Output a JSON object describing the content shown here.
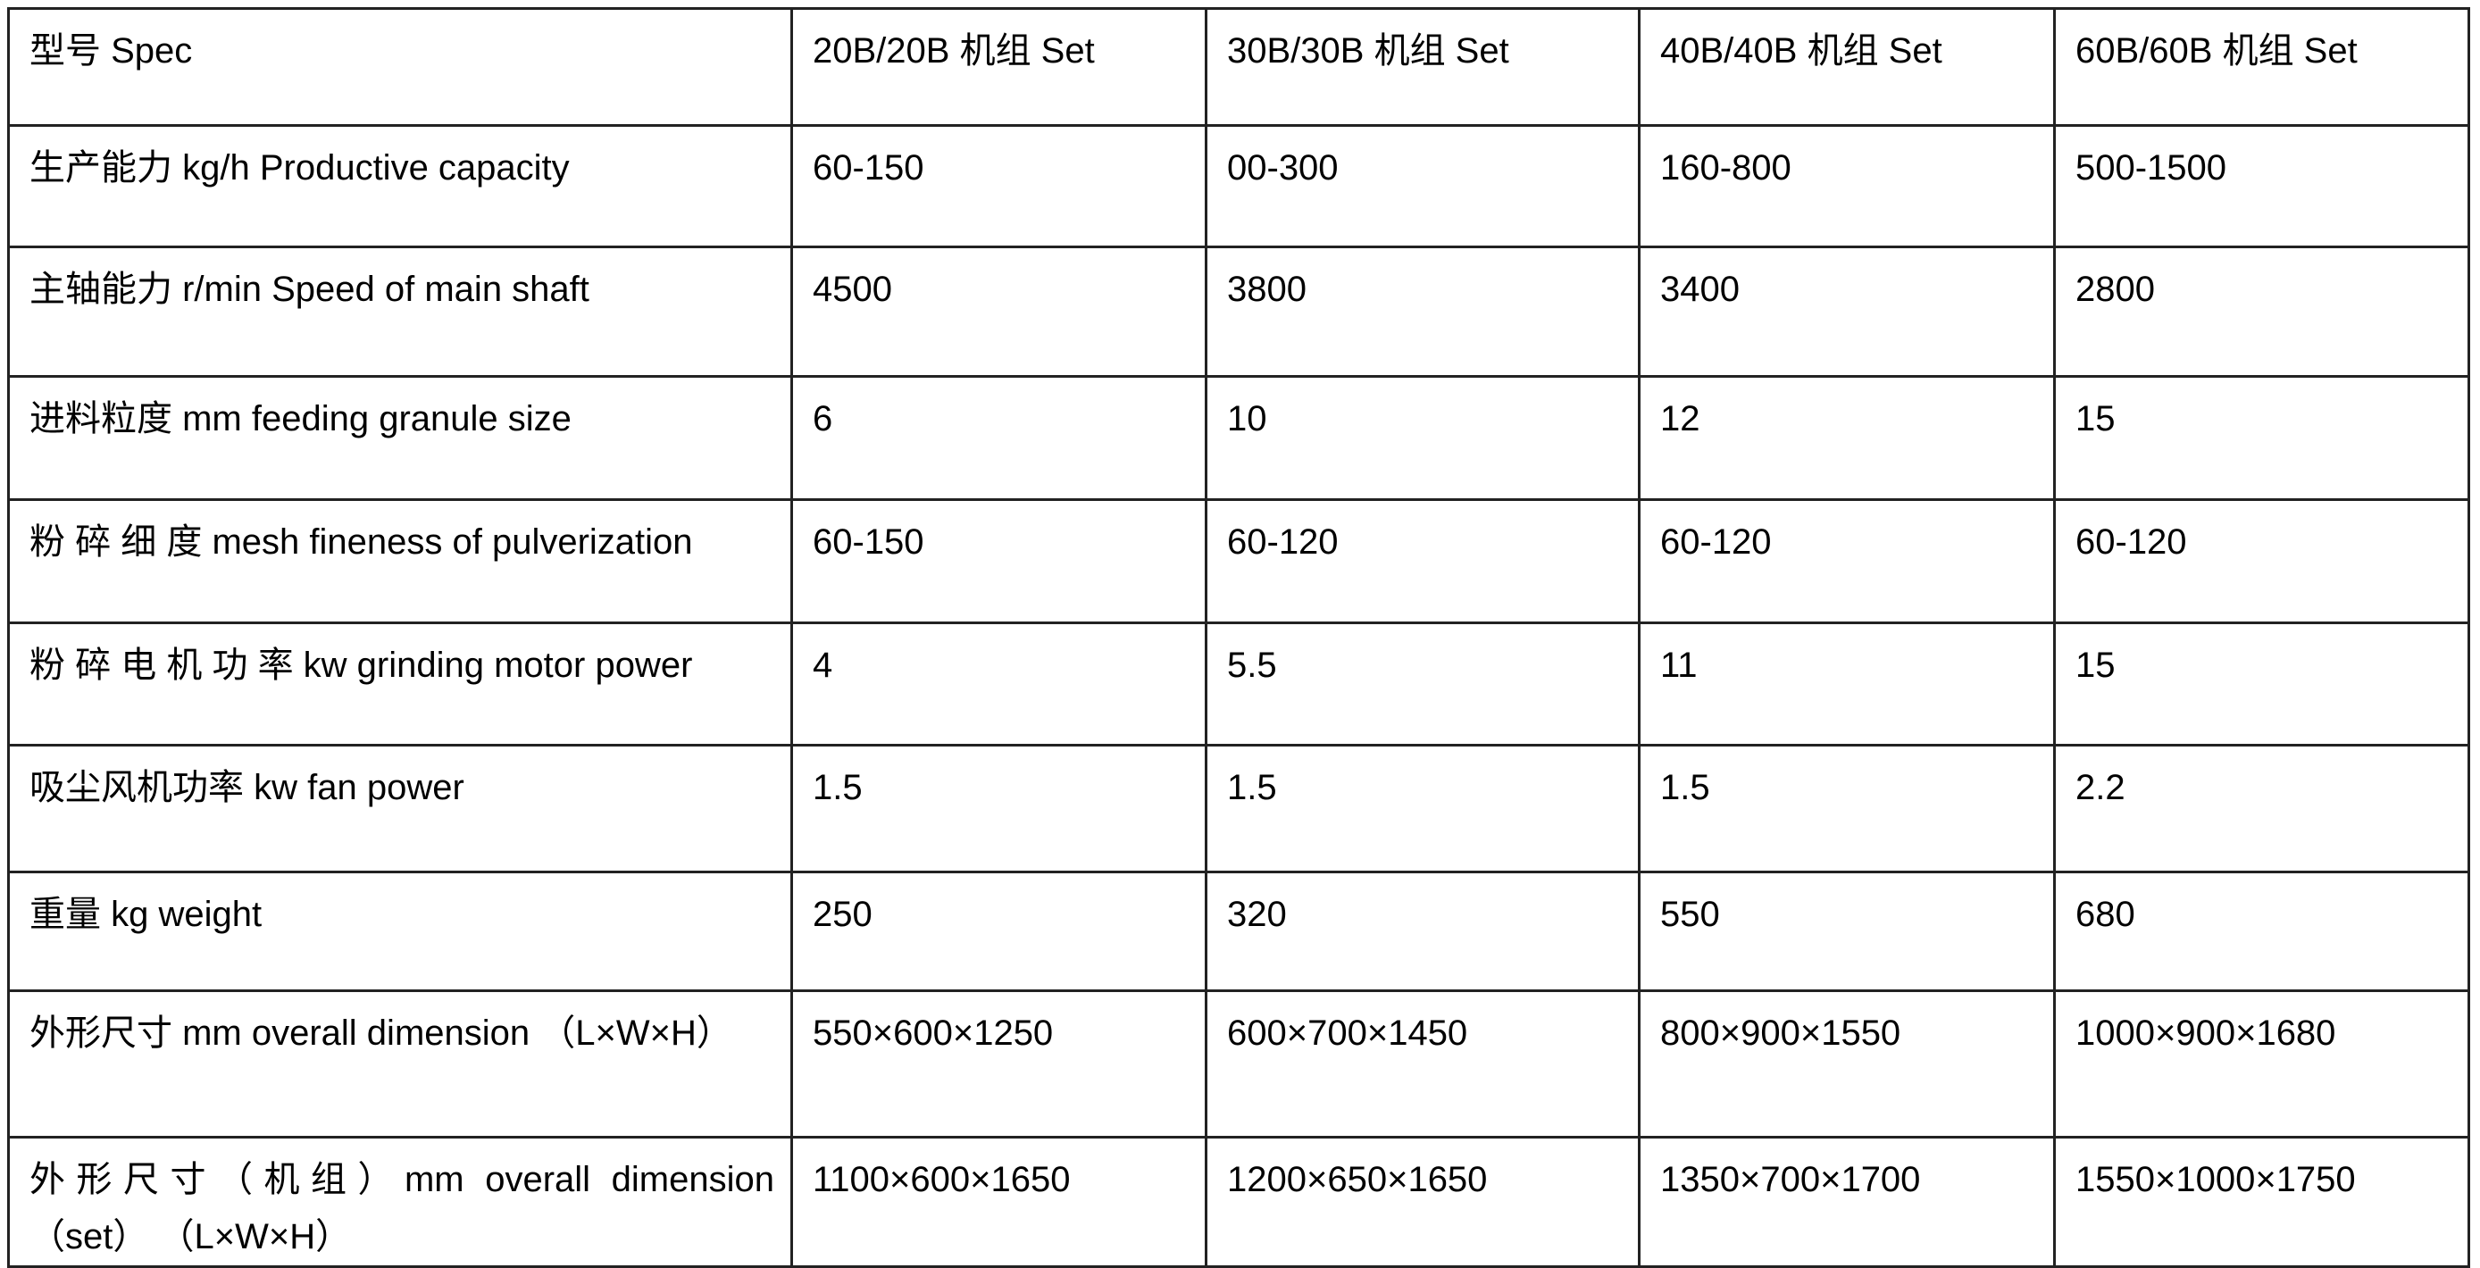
{
  "table": {
    "header": [
      "型号 Spec",
      "20B/20B 机组  Set",
      "30B/30B 机组  Set",
      "40B/40B 机组  Set",
      "60B/60B 机组  Set"
    ],
    "rows": [
      [
        "生产能力 kg/h Productive capacity",
        "60-150",
        "00-300",
        "160-800",
        "500-1500"
      ],
      [
        "主轴能力 r/min Speed of main shaft",
        "4500",
        "3800",
        "3400",
        "2800"
      ],
      [
        "进料粒度  mm feeding granule size",
        "6",
        "10",
        "12",
        "15"
      ],
      [
        "粉 碎 细 度   mesh fineness of pulverization",
        "60-150",
        "60-120",
        "60-120",
        "60-120"
      ],
      [
        "粉 碎 电 机 功 率  kw grinding motor power",
        "4",
        "5.5",
        "11",
        "15"
      ],
      [
        "吸尘风机功率  kw fan power",
        "1.5",
        "1.5",
        "1.5",
        "2.2"
      ],
      [
        "重量  kg weight",
        "250",
        "320",
        "550",
        "680"
      ],
      [
        "外形尺寸  mm overall dimension  （L×W×H）",
        "550×600×1250",
        "600×700×1450",
        "800×900×1550",
        "1000×900×1680"
      ],
      [
        "外形尺寸（机组）mm overall dimension （set）  （L×W×H）",
        "1100×600×1650",
        "1200×650×1650",
        "1350×700×1700",
        "1550×1000×1750"
      ]
    ]
  }
}
